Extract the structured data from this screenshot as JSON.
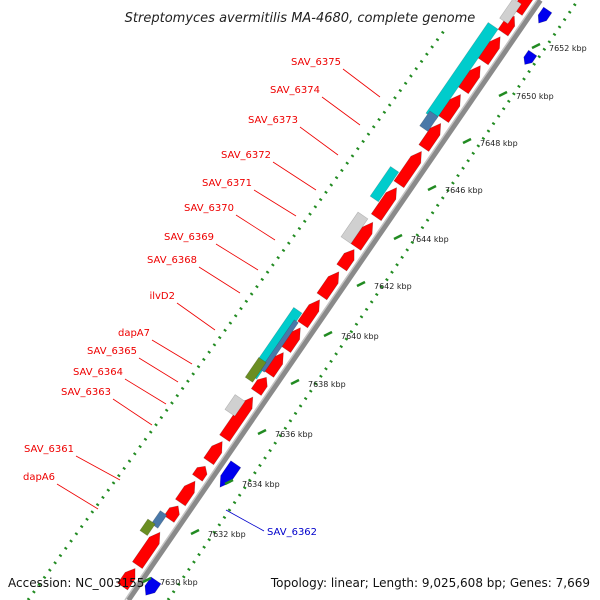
{
  "title": "Streptomyces avermitilis MA-4680, complete genome",
  "footer": {
    "accession": "Accession: NC_003155",
    "topology": "Topology: linear; Length: 9,025,608 bp; Genes: 7,669"
  },
  "colors": {
    "gene_default": "#ff0000",
    "gene_other_strand": "#0000ee",
    "backbone": "#8a8a8a",
    "dotted_track": "#228b22",
    "cyan_feature": "#00cccc",
    "steelblue_feature": "#4a78a8",
    "olive_feature": "#6b8e23",
    "grey_feature": "#d0d0d0",
    "label_red": "#ee0000",
    "label_blue": "#0000cc"
  },
  "scale": {
    "unit": "kbp",
    "ticks": [
      {
        "value": 7630,
        "label": "7630 kbp"
      },
      {
        "value": 7632,
        "label": "7632 kbp"
      },
      {
        "value": 7634,
        "label": "7634 kbp"
      },
      {
        "value": 7636,
        "label": "7636 kbp"
      },
      {
        "value": 7638,
        "label": "7638 kbp"
      },
      {
        "value": 7640,
        "label": "7640 kbp"
      },
      {
        "value": 7642,
        "label": "7642 kbp"
      },
      {
        "value": 7644,
        "label": "7644 kbp"
      },
      {
        "value": 7646,
        "label": "7646 kbp"
      },
      {
        "value": 7648,
        "label": "7648 kbp"
      },
      {
        "value": 7650,
        "label": "7650 kbp"
      },
      {
        "value": 7652,
        "label": "7652 kbp"
      }
    ]
  },
  "gene_labels": [
    {
      "text": "SAV_6375",
      "color": "red"
    },
    {
      "text": "SAV_6374",
      "color": "red"
    },
    {
      "text": "SAV_6373",
      "color": "red"
    },
    {
      "text": "SAV_6372",
      "color": "red"
    },
    {
      "text": "SAV_6371",
      "color": "red"
    },
    {
      "text": "SAV_6370",
      "color": "red"
    },
    {
      "text": "SAV_6369",
      "color": "red"
    },
    {
      "text": "SAV_6368",
      "color": "red"
    },
    {
      "text": "ilvD2",
      "color": "red"
    },
    {
      "text": "dapA7",
      "color": "red"
    },
    {
      "text": "SAV_6365",
      "color": "red"
    },
    {
      "text": "SAV_6364",
      "color": "red"
    },
    {
      "text": "SAV_6363",
      "color": "red"
    },
    {
      "text": "SAV_6361",
      "color": "red"
    },
    {
      "text": "dapA6",
      "color": "red"
    },
    {
      "text": "SAV_6362",
      "color": "blue"
    }
  ]
}
